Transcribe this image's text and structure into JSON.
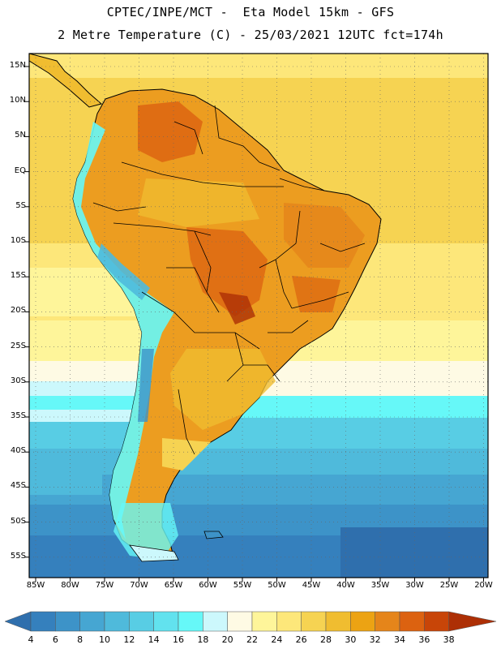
{
  "header": {
    "line1": "CPTEC/INPE/MCT -  Eta Model 15km - GFS",
    "line2": "2 Metre Temperature (C) - 25/03/2021 12UTC fct=174h"
  },
  "map": {
    "lat_labels": [
      "15N",
      "10N",
      "5N",
      "EQ",
      "5S",
      "10S",
      "15S",
      "20S",
      "25S",
      "30S",
      "35S",
      "40S",
      "45S",
      "50S",
      "55S"
    ],
    "lon_labels": [
      "85W",
      "80W",
      "75W",
      "70W",
      "65W",
      "60W",
      "55W",
      "50W",
      "45W",
      "40W",
      "35W",
      "30W",
      "25W",
      "20W"
    ],
    "frame_color": "#000000",
    "grid_style": "dotted"
  },
  "colorbar": {
    "labels": [
      "4",
      "6",
      "8",
      "10",
      "12",
      "14",
      "16",
      "18",
      "20",
      "22",
      "24",
      "26",
      "28",
      "30",
      "32",
      "34",
      "36",
      "38"
    ],
    "colors": [
      "#2f6fad",
      "#3580bd",
      "#3d93c8",
      "#46a6d2",
      "#4fbadb",
      "#58cde4",
      "#62e2ee",
      "#66f8f8",
      "#ccf8fc",
      "#fefae4",
      "#fef59a",
      "#fde77a",
      "#f6d352",
      "#f0bd30",
      "#eca313",
      "#e5851a",
      "#dc6210",
      "#c84508",
      "#ad2f05"
    ]
  }
}
